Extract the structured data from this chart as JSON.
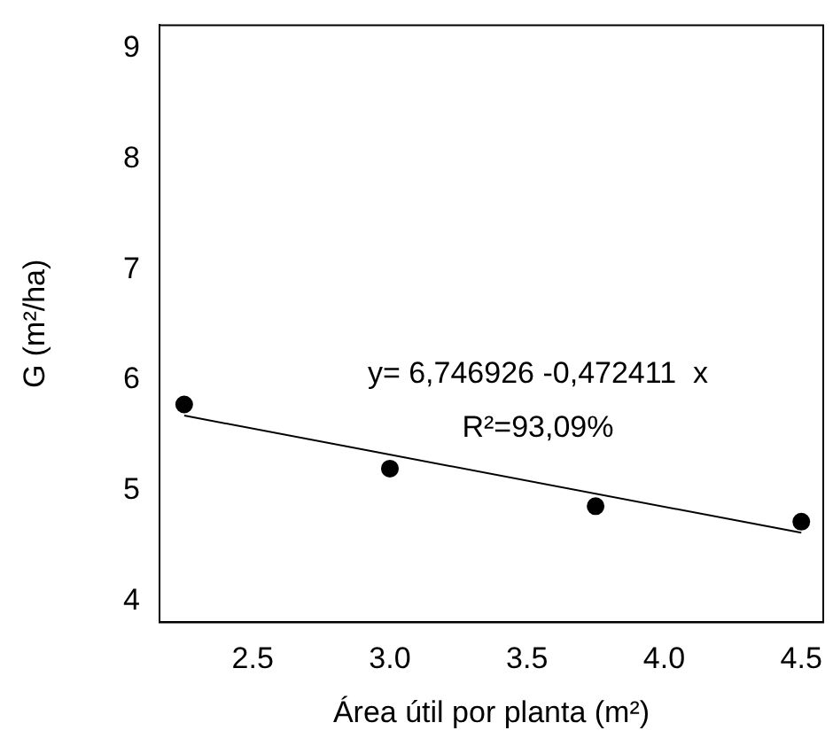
{
  "chart_data": {
    "type": "scatter",
    "xlabel": "Área útil por planta (m²)",
    "ylabel": "G (m²/ha)",
    "x": [
      2.25,
      3.0,
      3.75,
      4.5
    ],
    "series": [
      {
        "color": "#000000",
        "marker": "circle",
        "values": [
          5.78,
          5.2,
          4.86,
          4.72
        ]
      },
      {
        "type": "line",
        "color": "#000000",
        "marker": "none",
        "x": [
          2.25,
          4.5
        ],
        "values": [
          5.68,
          4.62
        ]
      }
    ],
    "xlim": [
      2.16,
      4.58
    ],
    "xticks": [
      {
        "value": 2.5,
        "label": "2.5"
      },
      {
        "value": 3,
        "label": "3.0"
      },
      {
        "value": 3.5,
        "label": "3.5"
      },
      {
        "value": 4,
        "label": "4.0"
      },
      {
        "value": 4.5,
        "label": "4.5"
      }
    ],
    "ylim": [
      3.81,
      9.21
    ],
    "yticks": [
      4,
      5,
      6,
      7,
      8,
      9
    ],
    "annotations": [
      "y= 6,746926 -0,472411  x",
      "R²=93,09%"
    ],
    "grid": false,
    "legend": false
  }
}
